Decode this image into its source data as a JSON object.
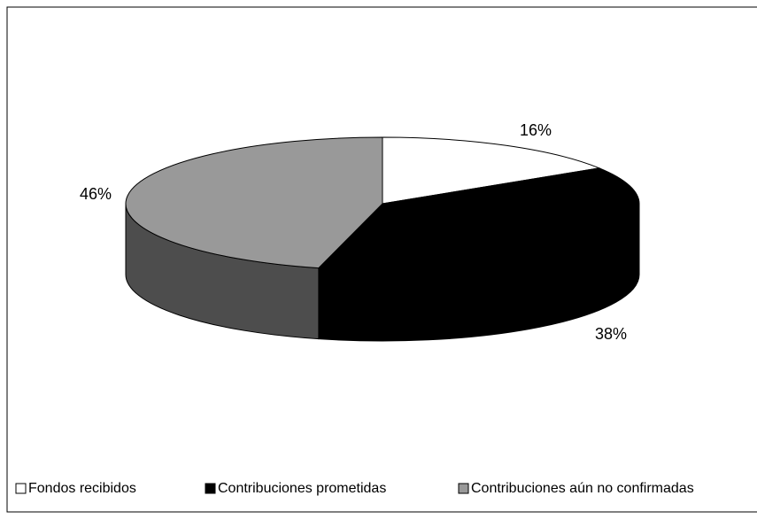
{
  "chart_data": {
    "type": "pie3d",
    "categories": [
      "Fondos recibidos",
      "Contribuciones prometidas",
      "Contribuciones aún no confirmadas"
    ],
    "values": [
      16,
      38,
      46
    ],
    "value_labels": [
      "16%",
      "38%",
      "46%"
    ],
    "colors": [
      "#ffffff",
      "#000000",
      "#999999"
    ],
    "side_colors": [
      "#cccccc",
      "#000000",
      "#4d4d4d"
    ],
    "legend": "bottom"
  }
}
